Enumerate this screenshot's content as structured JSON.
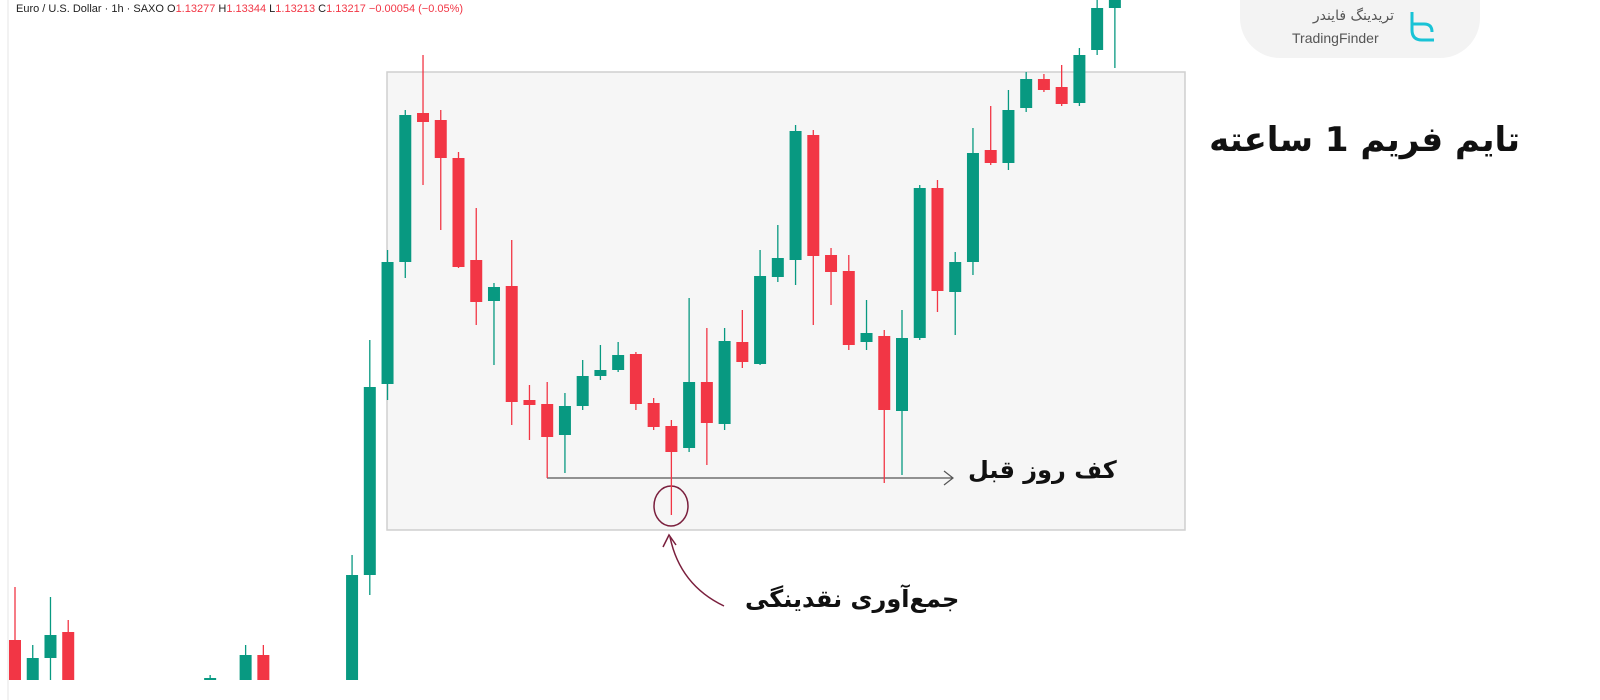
{
  "chart_data": {
    "type": "candlestick",
    "title": "تایم فریم 1 ساعته",
    "legend_header": {
      "symbol": "Euro / U.S. Dollar · 1h · SAXO",
      "items": [
        {
          "label": "O",
          "value": 1.13277
        },
        {
          "label": "H",
          "value": 1.13344
        },
        {
          "label": "L",
          "value": 1.13213
        },
        {
          "label": "C",
          "value": 1.13217
        }
      ],
      "change": "−0.00054 (−0.05%)"
    },
    "up_color": "#089981",
    "down_color": "#f23645",
    "ylim": [
      1.127,
      1.134
    ],
    "open": [
      1.1276,
      1.1272,
      1.12742,
      1.12768,
      null,
      null,
      null,
      null,
      null,
      null,
      null,
      1.1272,
      null,
      1.1272,
      1.12745,
      null,
      null,
      null,
      null,
      1.1272,
      1.12825,
      1.13016,
      1.13138,
      1.13287,
      1.1328,
      1.13242,
      1.1314,
      1.13099,
      1.13114,
      1.13,
      1.12996,
      1.12965,
      1.12994,
      1.13024,
      1.1303,
      1.13046,
      1.12997,
      1.12974,
      1.12952,
      1.13018,
      1.12976,
      1.13058,
      1.13036,
      1.13123,
      1.1314,
      1.13265,
      1.13145,
      1.13129,
      1.13058,
      1.13064,
      1.12989,
      1.13062,
      1.13212,
      1.13108,
      1.13138,
      1.1325,
      1.13237,
      1.13292,
      1.13321,
      1.13313,
      1.13297,
      1.1335,
      1.13392
    ],
    "high": [
      1.12813,
      1.12755,
      1.12803,
      1.1278,
      null,
      null,
      null,
      null,
      null,
      null,
      null,
      1.12725,
      null,
      1.12755,
      1.12755,
      null,
      null,
      null,
      null,
      1.12845,
      1.1306,
      1.1315,
      1.1329,
      1.13345,
      1.1329,
      1.13248,
      1.13192,
      1.13117,
      1.1316,
      1.13015,
      1.13018,
      1.13007,
      1.1304,
      1.13055,
      1.13058,
      1.13048,
      1.13002,
      1.1298,
      1.13102,
      1.13072,
      1.13072,
      1.1309,
      1.1315,
      1.13175,
      1.13275,
      1.1327,
      1.13152,
      1.13145,
      1.131,
      1.1307,
      1.1309,
      1.13215,
      1.1322,
      1.13148,
      1.13272,
      1.13294,
      1.1331,
      1.13328,
      1.13326,
      1.13335,
      1.13352,
      1.134,
      1.134
    ],
    "low": [
      1.1272,
      1.1272,
      1.1272,
      1.1272,
      null,
      null,
      null,
      null,
      null,
      null,
      null,
      1.1272,
      null,
      1.1272,
      1.1272,
      null,
      null,
      null,
      null,
      1.1272,
      1.12805,
      1.13,
      1.13122,
      1.13215,
      1.1317,
      1.13132,
      1.13075,
      1.13035,
      1.12975,
      1.1296,
      1.12922,
      1.12927,
      1.1299,
      1.1302,
      1.13028,
      1.1299,
      1.1297,
      1.12885,
      1.12948,
      1.12935,
      1.1297,
      1.13032,
      1.13035,
      1.13118,
      1.13115,
      1.13075,
      1.13095,
      1.1305,
      1.1305,
      1.12917,
      1.12925,
      1.1306,
      1.13088,
      1.13065,
      1.13125,
      1.13235,
      1.1323,
      1.13288,
      1.13308,
      1.13294,
      1.13294,
      1.13345,
      1.13332
    ],
    "close": [
      1.1272,
      1.12742,
      1.12765,
      1.1272,
      null,
      null,
      null,
      null,
      null,
      null,
      null,
      1.12722,
      null,
      1.12745,
      1.1272,
      null,
      null,
      null,
      null,
      1.12825,
      1.13013,
      1.13138,
      1.13285,
      1.13278,
      1.13242,
      1.13133,
      1.13098,
      1.13113,
      1.12998,
      1.12995,
      1.12963,
      1.12994,
      1.13024,
      1.1303,
      1.13045,
      1.12996,
      1.12973,
      1.12948,
      1.13018,
      1.12977,
      1.13059,
      1.13038,
      1.13124,
      1.13142,
      1.13269,
      1.13144,
      1.13128,
      1.13055,
      1.13067,
      1.1299,
      1.13062,
      1.13212,
      1.13109,
      1.13138,
      1.13247,
      1.13237,
      1.1329,
      1.13321,
      1.1331,
      1.13296,
      1.13345,
      1.13392,
      1.134
    ],
    "annotations": [
      {
        "text": "کف روز قبل",
        "level": 1.12922
      },
      {
        "text": "جمع‌آوری نقدینگی"
      }
    ]
  },
  "logo": {
    "persian": "تریدینگ فایندر",
    "latin": "TradingFinder"
  }
}
